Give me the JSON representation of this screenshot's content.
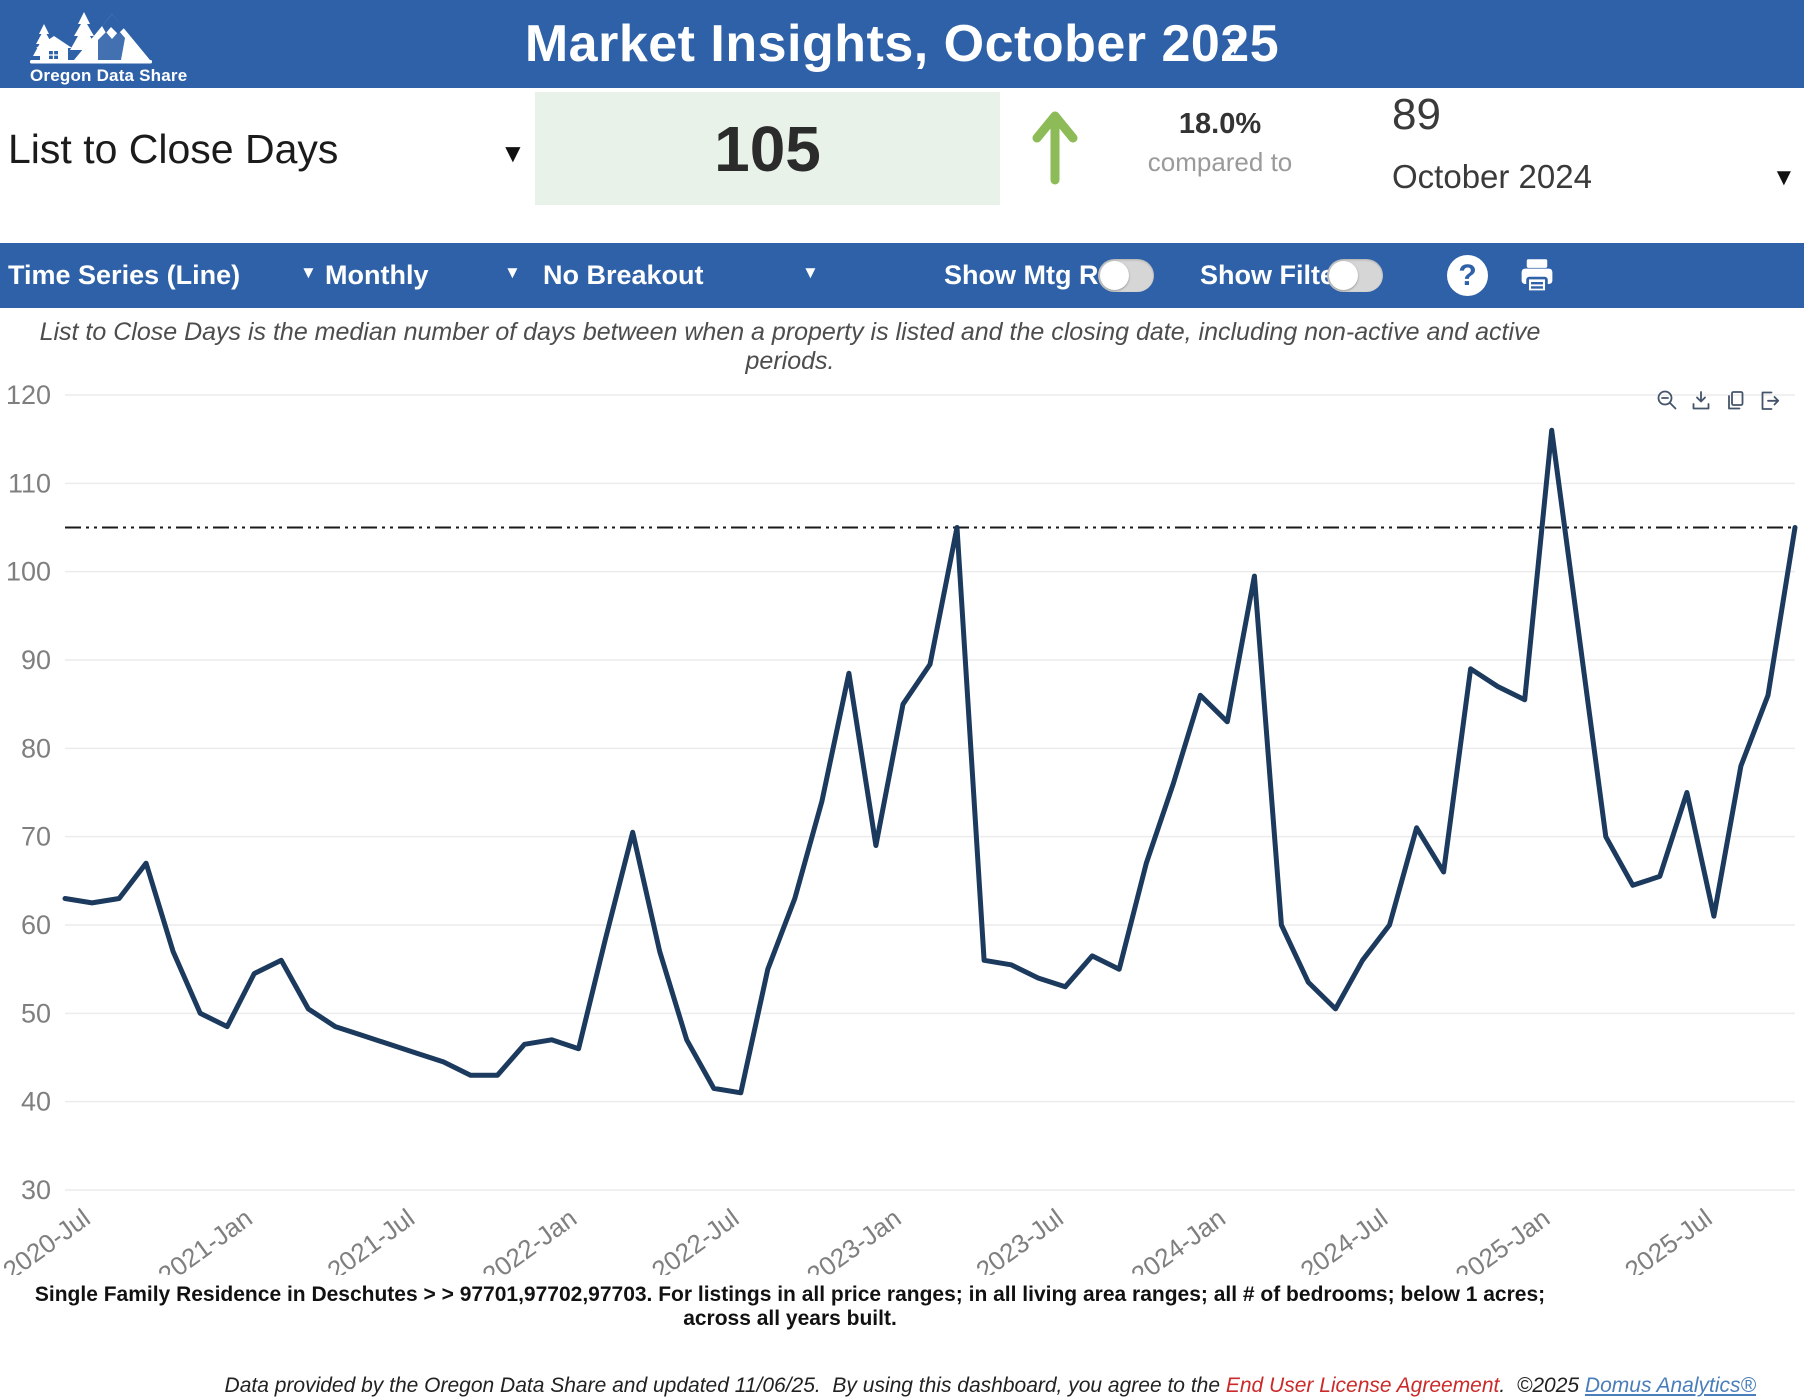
{
  "header": {
    "logo_text": "Oregon Data Share",
    "title": "Market Insights, October 2025"
  },
  "kpi": {
    "metric_label": "List to Close Days",
    "current_value": "105",
    "change_pct": "18.0%",
    "compared_label": "compared to",
    "prior_value": "89",
    "prior_period": "October 2024",
    "trend_direction": "up",
    "trend_color": "#8dbb57",
    "value_box_color": "#e8f2e9"
  },
  "toolbar": {
    "chart_type": "Time Series (Line)",
    "frequency": "Monthly",
    "breakout": "No Breakout",
    "show_mtg_rate_label": "Show Mtg Rate:",
    "show_filters_label": "Show Filters:",
    "mtg_rate_on": false,
    "filters_on": false,
    "help_label": "?"
  },
  "description": "List to Close Days is the median number of days between when a property is listed and the closing date, including non-active and active periods.",
  "chart_data": {
    "type": "line",
    "title": "",
    "xlabel": "",
    "ylabel": "",
    "ylim": [
      30,
      120
    ],
    "y_ticks": [
      30,
      40,
      50,
      60,
      70,
      80,
      90,
      100,
      110,
      120
    ],
    "grid": true,
    "legend_position": "none",
    "line_color": "#1b3a5e",
    "reference_line": {
      "value": 105,
      "style": "dash-dot",
      "color": "#1a1a1a"
    },
    "x_tick_labels": [
      "2020-Jul",
      "2021-Jan",
      "2021-Jul",
      "2022-Jan",
      "2022-Jul",
      "2023-Jan",
      "2023-Jul",
      "2024-Jan",
      "2024-Jul",
      "2025-Jan",
      "2025-Jul"
    ],
    "x_tick_indices": [
      1,
      7,
      13,
      19,
      25,
      31,
      37,
      43,
      49,
      55,
      61
    ],
    "x": [
      "2020-Jun",
      "2020-Jul",
      "2020-Aug",
      "2020-Sep",
      "2020-Oct",
      "2020-Nov",
      "2020-Dec",
      "2021-Jan",
      "2021-Feb",
      "2021-Mar",
      "2021-Apr",
      "2021-May",
      "2021-Jun",
      "2021-Jul",
      "2021-Aug",
      "2021-Sep",
      "2021-Oct",
      "2021-Nov",
      "2021-Dec",
      "2022-Jan",
      "2022-Feb",
      "2022-Mar",
      "2022-Apr",
      "2022-May",
      "2022-Jun",
      "2022-Jul",
      "2022-Aug",
      "2022-Sep",
      "2022-Oct",
      "2022-Nov",
      "2022-Dec",
      "2023-Jan",
      "2023-Feb",
      "2023-Mar",
      "2023-Apr",
      "2023-May",
      "2023-Jun",
      "2023-Jul",
      "2023-Aug",
      "2023-Sep",
      "2023-Oct",
      "2023-Nov",
      "2023-Dec",
      "2024-Jan",
      "2024-Feb",
      "2024-Mar",
      "2024-Apr",
      "2024-May",
      "2024-Jun",
      "2024-Jul",
      "2024-Aug",
      "2024-Sep",
      "2024-Oct",
      "2024-Nov",
      "2024-Dec",
      "2025-Jan",
      "2025-Feb",
      "2025-Mar",
      "2025-Apr",
      "2025-May",
      "2025-Jun",
      "2025-Jul",
      "2025-Aug",
      "2025-Sep",
      "2025-Oct"
    ],
    "values": [
      63,
      62.5,
      63,
      67,
      57,
      50,
      48.5,
      54.5,
      56,
      50.5,
      48.5,
      47.5,
      46.5,
      45.5,
      44.5,
      43,
      43,
      46.5,
      47,
      46,
      58.5,
      70.5,
      57,
      47,
      41.5,
      41,
      55,
      63,
      74,
      88.5,
      69,
      85,
      89.5,
      105,
      56,
      55.5,
      54,
      53,
      56.5,
      55,
      67,
      76,
      86,
      83,
      99.5,
      60,
      53.5,
      50.5,
      56,
      60,
      71,
      66,
      89,
      87,
      85.5,
      116,
      93,
      70,
      64.5,
      65.5,
      75,
      61,
      78,
      86,
      105
    ]
  },
  "chart_toolbox": [
    "zoom-out",
    "download",
    "copy",
    "export"
  ],
  "footnote": "Single Family Residence in Deschutes > > 97701,97702,97703. For listings in all price ranges; in all living area ranges; all # of bedrooms; below 1 acres; across all years built.",
  "footer": {
    "text_before": "Data provided by the Oregon Data Share and updated 11/06/25.  By using this dashboard, you agree to the ",
    "eula_link": "End User License Agreement",
    "text_middle": ".  ©2025 ",
    "domus_link": "Domus Analytics®"
  },
  "colors": {
    "header_blue": "#2e61a8",
    "line_navy": "#1b3a5e",
    "kpi_green_bg": "#e8f2e9",
    "arrow_green": "#8dbb57",
    "tick_gray": "#7f7f7f",
    "gridline": "#ececec",
    "eula_red": "#cc2a2a",
    "domus_blue": "#4a7ebb"
  }
}
